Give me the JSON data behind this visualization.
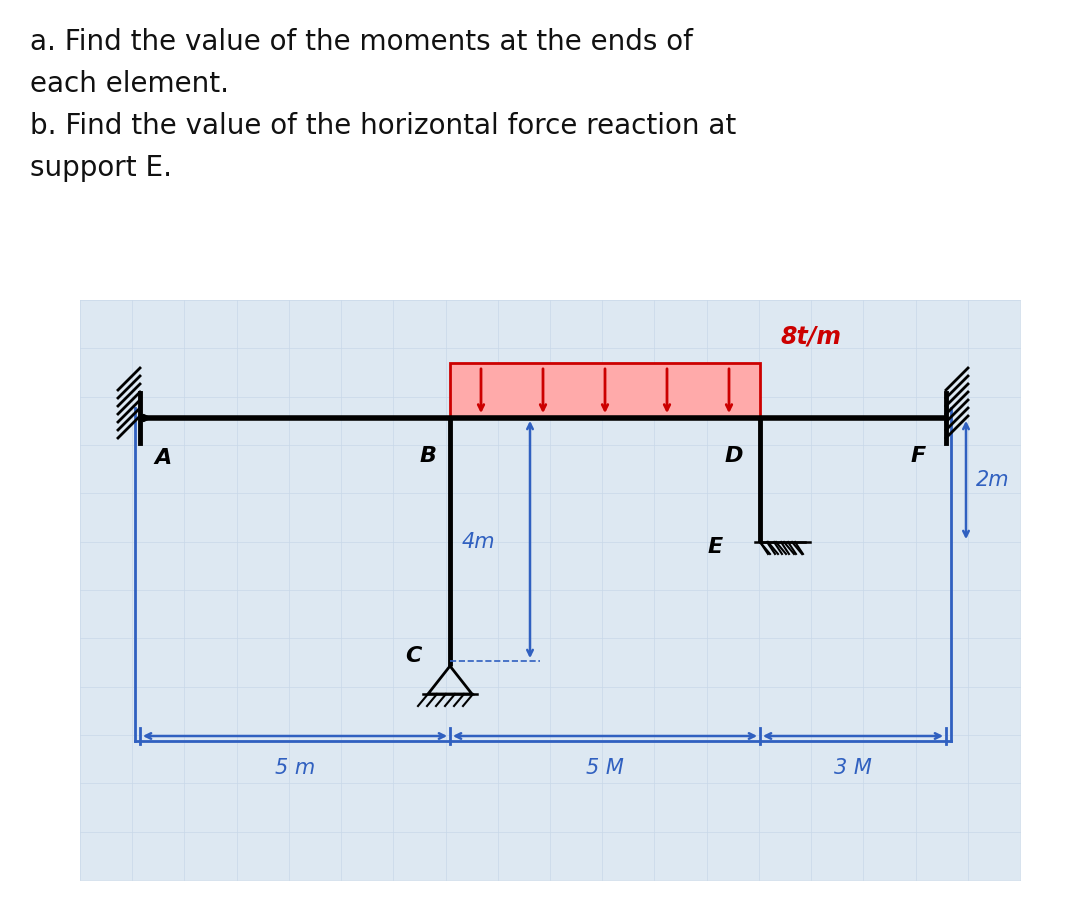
{
  "title_lines": [
    "a. Find the value of the moments at the ends of",
    "each element.",
    "b. Find the value of the horizontal force reaction at",
    "support E."
  ],
  "bg_color": "#ffffff",
  "grid_color": "#c8d8e8",
  "diagram_bg": "#dde8f2",
  "beam_color": "#000000",
  "blue_color": "#3060c0",
  "red_color": "#cc0000",
  "load_fill": "#ffaaaa",
  "title_fontsize": 20,
  "label_fontsize": 16,
  "dim_fontsize": 15,
  "load_label": "8t/m",
  "dim_4m": "4m",
  "dim_2m": "2m",
  "dim_bot": [
    "5 m",
    "5 M",
    "3 M"
  ],
  "node_labels": [
    "A",
    "B",
    "C",
    "D",
    "E",
    "F"
  ],
  "A": [
    0,
    0
  ],
  "B": [
    5,
    0
  ],
  "C": [
    5,
    -4
  ],
  "D": [
    10,
    0
  ],
  "E": [
    10,
    -2
  ],
  "F": [
    13,
    0
  ]
}
